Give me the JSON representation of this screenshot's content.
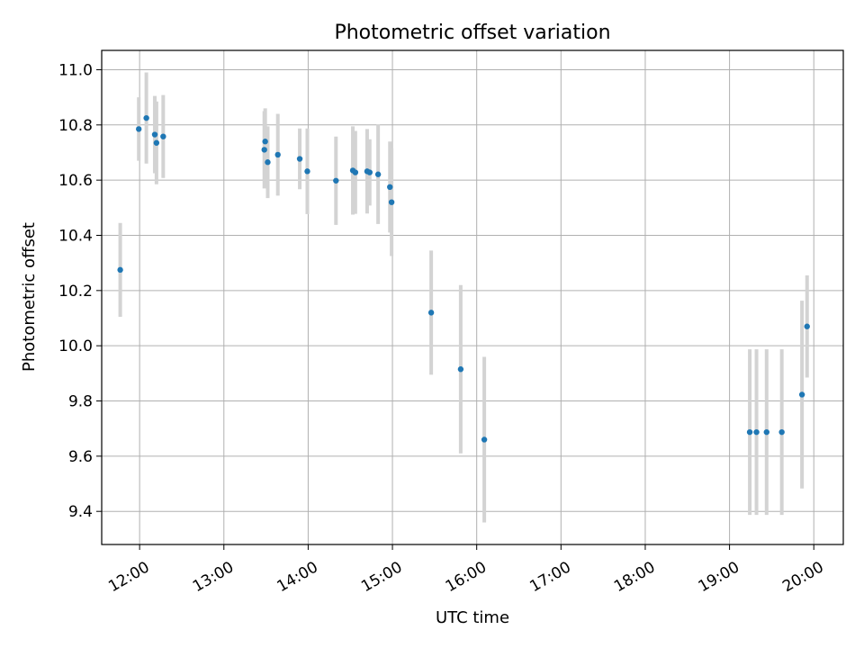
{
  "chart_data": {
    "type": "scatter",
    "title": "Photometric offset variation",
    "xlabel": "UTC time",
    "ylabel": "Photometric offset",
    "xlim_hours": [
      11.55,
      20.35
    ],
    "ylim": [
      9.28,
      11.07
    ],
    "grid": true,
    "x_ticks": [
      {
        "hour": 12,
        "label": "12:00"
      },
      {
        "hour": 13,
        "label": "13:00"
      },
      {
        "hour": 14,
        "label": "14:00"
      },
      {
        "hour": 15,
        "label": "15:00"
      },
      {
        "hour": 16,
        "label": "16:00"
      },
      {
        "hour": 17,
        "label": "17:00"
      },
      {
        "hour": 18,
        "label": "18:00"
      },
      {
        "hour": 19,
        "label": "19:00"
      },
      {
        "hour": 20,
        "label": "20:00"
      }
    ],
    "y_ticks": [
      {
        "value": 9.4,
        "label": "9.4"
      },
      {
        "value": 9.6,
        "label": "9.6"
      },
      {
        "value": 9.8,
        "label": "9.8"
      },
      {
        "value": 10.0,
        "label": "10.0"
      },
      {
        "value": 10.2,
        "label": "10.2"
      },
      {
        "value": 10.4,
        "label": "10.4"
      },
      {
        "value": 10.6,
        "label": "10.6"
      },
      {
        "value": 10.8,
        "label": "10.8"
      },
      {
        "value": 11.0,
        "label": "11.0"
      }
    ],
    "marker_color": "#1f77b4",
    "errorbar_color": "#d3d3d3",
    "points": [
      {
        "t": 11.77,
        "y": 10.275,
        "err": 0.17
      },
      {
        "t": 11.99,
        "y": 10.785,
        "err": 0.115
      },
      {
        "t": 12.08,
        "y": 10.825,
        "err": 0.165
      },
      {
        "t": 12.18,
        "y": 10.765,
        "err": 0.14
      },
      {
        "t": 12.2,
        "y": 10.735,
        "err": 0.15
      },
      {
        "t": 12.28,
        "y": 10.758,
        "err": 0.15
      },
      {
        "t": 13.48,
        "y": 10.71,
        "err": 0.14
      },
      {
        "t": 13.49,
        "y": 10.74,
        "err": 0.12
      },
      {
        "t": 13.52,
        "y": 10.665,
        "err": 0.13
      },
      {
        "t": 13.64,
        "y": 10.692,
        "err": 0.148
      },
      {
        "t": 13.9,
        "y": 10.677,
        "err": 0.11
      },
      {
        "t": 13.99,
        "y": 10.632,
        "err": 0.155
      },
      {
        "t": 14.33,
        "y": 10.598,
        "err": 0.16
      },
      {
        "t": 14.53,
        "y": 10.635,
        "err": 0.16
      },
      {
        "t": 14.56,
        "y": 10.628,
        "err": 0.15
      },
      {
        "t": 14.7,
        "y": 10.632,
        "err": 0.153
      },
      {
        "t": 14.73,
        "y": 10.628,
        "err": 0.12
      },
      {
        "t": 14.83,
        "y": 10.621,
        "err": 0.18
      },
      {
        "t": 14.97,
        "y": 10.575,
        "err": 0.165
      },
      {
        "t": 14.99,
        "y": 10.52,
        "err": 0.195
      },
      {
        "t": 15.46,
        "y": 10.12,
        "err": 0.225
      },
      {
        "t": 15.81,
        "y": 9.915,
        "err": 0.305
      },
      {
        "t": 16.09,
        "y": 9.66,
        "err": 0.3
      },
      {
        "t": 19.24,
        "y": 9.687,
        "err": 0.3
      },
      {
        "t": 19.32,
        "y": 9.687,
        "err": 0.3
      },
      {
        "t": 19.44,
        "y": 9.687,
        "err": 0.3
      },
      {
        "t": 19.62,
        "y": 9.687,
        "err": 0.3
      },
      {
        "t": 19.86,
        "y": 9.823,
        "err": 0.34
      },
      {
        "t": 19.92,
        "y": 10.07,
        "err": 0.185
      }
    ]
  }
}
